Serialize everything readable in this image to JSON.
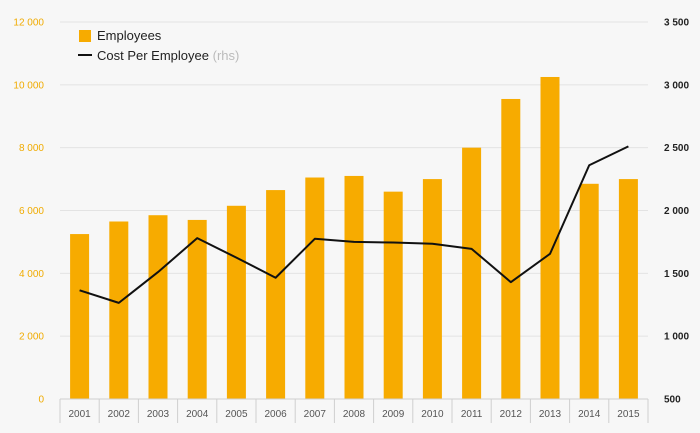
{
  "chart_data": {
    "type": "bar",
    "categories": [
      "2001",
      "2002",
      "2003",
      "2004",
      "2005",
      "2006",
      "2007",
      "2008",
      "2009",
      "2010",
      "2011",
      "2012",
      "2013",
      "2014",
      "2015"
    ],
    "series": [
      {
        "name": "Employees",
        "type": "bar",
        "axis": "left",
        "color": "#f7ab00",
        "values": [
          5250,
          5650,
          5850,
          5700,
          6150,
          6650,
          7050,
          7100,
          6600,
          7000,
          8000,
          9550,
          10250,
          6850,
          7000
        ]
      },
      {
        "name": "Cost Per Employee",
        "type": "line",
        "axis": "right",
        "color": "#111111",
        "values": [
          1365,
          1265,
          1510,
          1780,
          1625,
          1465,
          1775,
          1750,
          1745,
          1735,
          1695,
          1430,
          1655,
          2360,
          2510
        ]
      }
    ],
    "left_axis": {
      "ylim": [
        0,
        12000
      ],
      "ticks": [
        0,
        2000,
        4000,
        6000,
        8000,
        10000,
        12000
      ],
      "tick_labels": [
        "0",
        "2 000",
        "4 000",
        "6 000",
        "8 000",
        "10 000",
        "12 000"
      ],
      "color": "#f0ab00"
    },
    "right_axis": {
      "ylim": [
        500,
        3500
      ],
      "ticks": [
        500,
        1000,
        1500,
        2000,
        2500,
        3000,
        3500
      ],
      "tick_labels": [
        "500",
        "1 000",
        "1 500",
        "2 000",
        "2 500",
        "3 000",
        "3 500"
      ],
      "color": "#222222"
    },
    "legend": {
      "placement": "top-left",
      "items": [
        {
          "label": "Employees",
          "note": "",
          "marker": "square"
        },
        {
          "label": "Cost Per Employee",
          "note": "(rhs)",
          "marker": "line"
        }
      ]
    },
    "grid": true,
    "title": "",
    "xlabel": "",
    "ylabel": ""
  }
}
